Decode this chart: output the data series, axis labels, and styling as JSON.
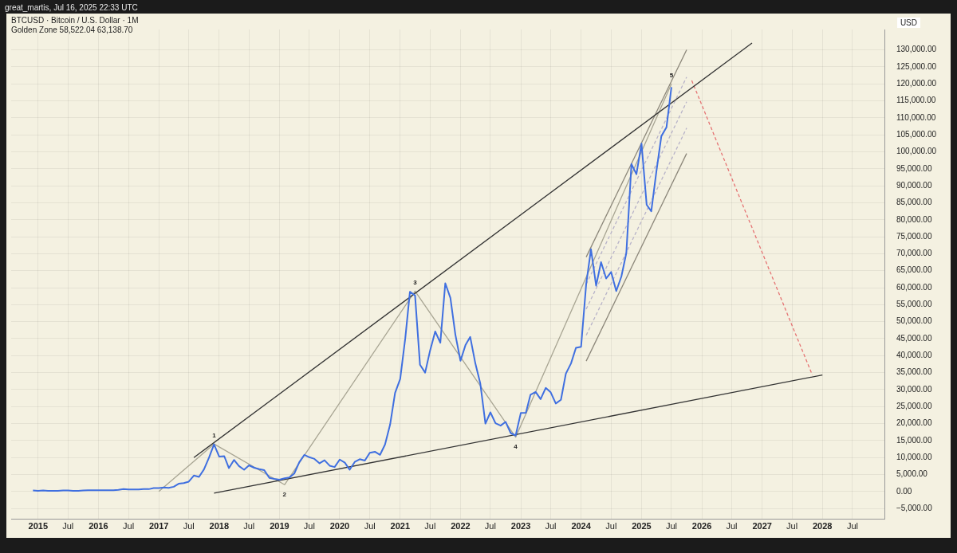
{
  "chart_data": {
    "type": "line",
    "title": "BTCUSD · Bitcoin / U.S. Dollar · 1M",
    "subtitle": "Golden Zone 58,522.04 63,138.70",
    "ylabel": "USD",
    "annotations": [
      "great_martis, Jul 16, 2025 22:33 UTC",
      {
        "text": "1",
        "x": "2017-12",
        "y": 14000
      },
      {
        "text": "2",
        "x": "2019-02",
        "y": 2000
      },
      {
        "text": "3",
        "x": "2021-04",
        "y": 59000
      },
      {
        "text": "4",
        "x": "2022-12",
        "y": 16000
      },
      {
        "text": "5",
        "x": "2025-07",
        "y": 120000
      }
    ],
    "x": [
      "2014-12",
      "2015-01",
      "2015-02",
      "2015-03",
      "2015-04",
      "2015-05",
      "2015-06",
      "2015-07",
      "2015-08",
      "2015-09",
      "2015-10",
      "2015-11",
      "2015-12",
      "2016-01",
      "2016-02",
      "2016-03",
      "2016-04",
      "2016-05",
      "2016-06",
      "2016-07",
      "2016-08",
      "2016-09",
      "2016-10",
      "2016-11",
      "2016-12",
      "2017-01",
      "2017-02",
      "2017-03",
      "2017-04",
      "2017-05",
      "2017-06",
      "2017-07",
      "2017-08",
      "2017-09",
      "2017-10",
      "2017-11",
      "2017-12",
      "2018-01",
      "2018-02",
      "2018-03",
      "2018-04",
      "2018-05",
      "2018-06",
      "2018-07",
      "2018-08",
      "2018-09",
      "2018-10",
      "2018-11",
      "2018-12",
      "2019-01",
      "2019-02",
      "2019-03",
      "2019-04",
      "2019-05",
      "2019-06",
      "2019-07",
      "2019-08",
      "2019-09",
      "2019-10",
      "2019-11",
      "2019-12",
      "2020-01",
      "2020-02",
      "2020-03",
      "2020-04",
      "2020-05",
      "2020-06",
      "2020-07",
      "2020-08",
      "2020-09",
      "2020-10",
      "2020-11",
      "2020-12",
      "2021-01",
      "2021-02",
      "2021-03",
      "2021-04",
      "2021-05",
      "2021-06",
      "2021-07",
      "2021-08",
      "2021-09",
      "2021-10",
      "2021-11",
      "2021-12",
      "2022-01",
      "2022-02",
      "2022-03",
      "2022-04",
      "2022-05",
      "2022-06",
      "2022-07",
      "2022-08",
      "2022-09",
      "2022-10",
      "2022-11",
      "2022-12",
      "2023-01",
      "2023-02",
      "2023-03",
      "2023-04",
      "2023-05",
      "2023-06",
      "2023-07",
      "2023-08",
      "2023-09",
      "2023-10",
      "2023-11",
      "2023-12",
      "2024-01",
      "2024-02",
      "2024-03",
      "2024-04",
      "2024-05",
      "2024-06",
      "2024-07",
      "2024-08",
      "2024-09",
      "2024-10",
      "2024-11",
      "2024-12",
      "2025-01",
      "2025-02",
      "2025-03",
      "2025-04",
      "2025-05",
      "2025-06",
      "2025-07"
    ],
    "series": [
      {
        "color": "#3f6fe0",
        "values": [
          300,
          200,
          300,
          200,
          200,
          200,
          300,
          300,
          200,
          200,
          300,
          400,
          400,
          400,
          400,
          400,
          400,
          500,
          700,
          600,
          600,
          600,
          700,
          700,
          1000,
          1000,
          1200,
          1100,
          1400,
          2300,
          2500,
          2900,
          4700,
          4300,
          6500,
          10000,
          13900,
          10300,
          10400,
          6900,
          9300,
          7500,
          6400,
          7700,
          7000,
          6600,
          6300,
          4000,
          3700,
          3500,
          3900,
          4100,
          5300,
          8600,
          10800,
          10100,
          9600,
          8300,
          9200,
          7600,
          7200,
          9400,
          8500,
          6400,
          8700,
          9500,
          9100,
          11400,
          11700,
          10800,
          13800,
          19700,
          29000,
          33100,
          45200,
          58800,
          57700,
          37300,
          35000,
          41500,
          47100,
          43800,
          61300,
          57000,
          46200,
          38500,
          43200,
          45500,
          37700,
          31800,
          20000,
          23300,
          20100,
          19400,
          20500,
          17200,
          16500,
          23100,
          23200,
          28500,
          29300,
          27200,
          30500,
          29200,
          25900,
          27000,
          34700,
          37700,
          42300,
          42600,
          61100,
          71300,
          60600,
          67500,
          62700,
          64600,
          59000,
          63300,
          70200,
          96400,
          93400,
          102400,
          84400,
          82500,
          94200,
          104600,
          107200,
          119000
        ]
      },
      {
        "type": "line",
        "color": "#333333",
        "x": [
          "2017-08",
          "2026-11"
        ],
        "values": [
          10000,
          132000
        ]
      },
      {
        "type": "line",
        "color": "#333333",
        "x": [
          "2017-12",
          "2028-01"
        ],
        "values": [
          -500,
          34300
        ]
      },
      {
        "type": "line",
        "color": "#a8a593",
        "x": [
          "2017-01",
          "2017-12",
          "2019-02",
          "2021-04",
          "2022-12",
          "2025-07"
        ],
        "values": [
          0,
          14000,
          2000,
          59000,
          16000,
          120000
        ]
      },
      {
        "type": "line",
        "color": "#8c877a",
        "x": [
          "2024-02",
          "2025-10"
        ],
        "values": [
          69000,
          130000
        ]
      },
      {
        "type": "line",
        "color": "#8c877a",
        "x": [
          "2024-02",
          "2025-10"
        ],
        "values": [
          38400,
          99500
        ]
      },
      {
        "type": "line",
        "color": "#b7b2c8",
        "line_style": "dashed",
        "x": [
          "2024-02",
          "2025-10"
        ],
        "values": [
          61000,
          122000
        ]
      },
      {
        "type": "line",
        "color": "#b7b2c8",
        "line_style": "dashed",
        "x": [
          "2024-02",
          "2025-10"
        ],
        "values": [
          53700,
          114700
        ]
      },
      {
        "type": "line",
        "color": "#b7b2c8",
        "line_style": "dashed",
        "x": [
          "2024-02",
          "2025-10"
        ],
        "values": [
          46000,
          107000
        ]
      },
      {
        "type": "line",
        "color": "#e57373",
        "line_style": "dashed",
        "x": [
          "2025-11",
          "2027-11"
        ],
        "values": [
          121000,
          34300
        ]
      }
    ],
    "xlim": [
      "2014-07-22",
      "2029-01-15"
    ],
    "xticks": [
      {
        "value": "2015-01-01",
        "label": "2015"
      },
      {
        "value": "2015-07-01",
        "label": "Jul"
      },
      {
        "value": "2016-01-01",
        "label": "2016"
      },
      {
        "value": "2016-07-01",
        "label": "Jul"
      },
      {
        "value": "2017-01-01",
        "label": "2017"
      },
      {
        "value": "2017-07-01",
        "label": "Jul"
      },
      {
        "value": "2018-01-01",
        "label": "2018"
      },
      {
        "value": "2018-07-01",
        "label": "Jul"
      },
      {
        "value": "2019-01-01",
        "label": "2019"
      },
      {
        "value": "2019-07-01",
        "label": "Jul"
      },
      {
        "value": "2020-01-01",
        "label": "2020"
      },
      {
        "value": "2020-07-01",
        "label": "Jul"
      },
      {
        "value": "2021-01-01",
        "label": "2021"
      },
      {
        "value": "2021-07-01",
        "label": "Jul"
      },
      {
        "value": "2022-01-01",
        "label": "2022"
      },
      {
        "value": "2022-07-01",
        "label": "Jul"
      },
      {
        "value": "2023-01-01",
        "label": "2023"
      },
      {
        "value": "2023-07-01",
        "label": "Jul"
      },
      {
        "value": "2024-01-01",
        "label": "2024"
      },
      {
        "value": "2024-07-01",
        "label": "Jul"
      },
      {
        "value": "2025-01-01",
        "label": "2025"
      },
      {
        "value": "2025-07-01",
        "label": "Jul"
      },
      {
        "value": "2026-01-01",
        "label": "2026"
      },
      {
        "value": "2026-07-01",
        "label": "Jul"
      },
      {
        "value": "2027-01-01",
        "label": "2027"
      },
      {
        "value": "2027-07-01",
        "label": "Jul"
      },
      {
        "value": "2028-01-01",
        "label": "2028"
      },
      {
        "value": "2028-07-01",
        "label": "Jul"
      }
    ],
    "ylim": [
      -8200,
      136000
    ],
    "yticks": [
      {
        "value": -5000,
        "label": "−5,000.00"
      },
      {
        "value": 0,
        "label": "0.00"
      },
      {
        "value": 5000,
        "label": "5,000.00"
      },
      {
        "value": 10000,
        "label": "10,000.00"
      },
      {
        "value": 15000,
        "label": "15,000.00"
      },
      {
        "value": 20000,
        "label": "20,000.00"
      },
      {
        "value": 25000,
        "label": "25,000.00"
      },
      {
        "value": 30000,
        "label": "30,000.00"
      },
      {
        "value": 35000,
        "label": "35,000.00"
      },
      {
        "value": 40000,
        "label": "40,000.00"
      },
      {
        "value": 45000,
        "label": "45,000.00"
      },
      {
        "value": 50000,
        "label": "50,000.00"
      },
      {
        "value": 55000,
        "label": "55,000.00"
      },
      {
        "value": 60000,
        "label": "60,000.00"
      },
      {
        "value": 65000,
        "label": "65,000.00"
      },
      {
        "value": 70000,
        "label": "70,000.00"
      },
      {
        "value": 75000,
        "label": "75,000.00"
      },
      {
        "value": 80000,
        "label": "80,000.00"
      },
      {
        "value": 85000,
        "label": "85,000.00"
      },
      {
        "value": 90000,
        "label": "90,000.00"
      },
      {
        "value": 95000,
        "label": "95,000.00"
      },
      {
        "value": 100000,
        "label": "100,000.00"
      },
      {
        "value": 105000,
        "label": "105,000.00"
      },
      {
        "value": 110000,
        "label": "110,000.00"
      },
      {
        "value": 115000,
        "label": "115,000.00"
      },
      {
        "value": 120000,
        "label": "120,000.00"
      },
      {
        "value": 125000,
        "label": "125,000.00"
      },
      {
        "value": 130000,
        "label": "130,000.00"
      }
    ],
    "grid": true,
    "legend": false,
    "marker": "none",
    "line_style": "solid"
  }
}
